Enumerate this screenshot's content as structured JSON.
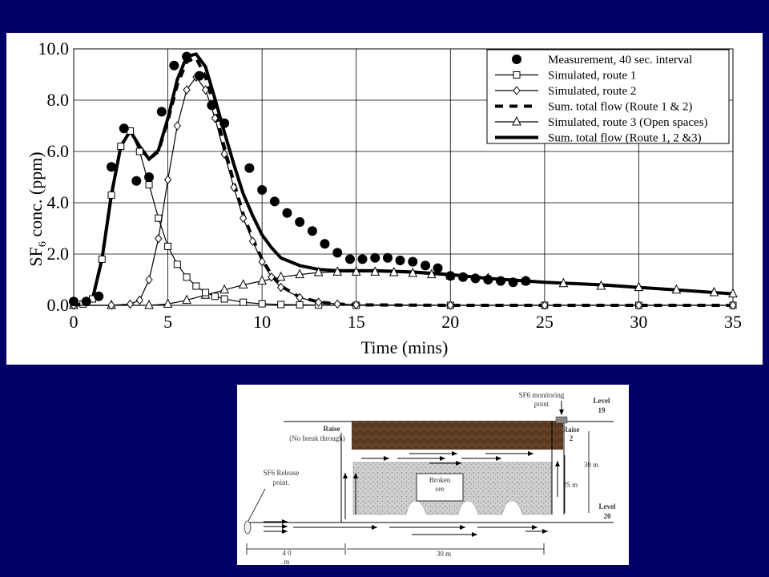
{
  "chart_data": {
    "type": "line",
    "xlabel": "Time (mins)",
    "ylabel_pre": "SF",
    "ylabel_sub": "6",
    "ylabel_post": " conc. (ppm)",
    "xlim": [
      0,
      35
    ],
    "ylim": [
      0,
      10
    ],
    "xticks": [
      0,
      5,
      10,
      15,
      20,
      25,
      30,
      35
    ],
    "yticks": [
      "0.0",
      "2.0",
      "4.0",
      "6.0",
      "8.0",
      "10.0"
    ],
    "grid": true,
    "legend_position": "top-right",
    "series": [
      {
        "name": "Measurement, 40 sec. interval",
        "style": "dots",
        "x": [
          0,
          0.67,
          1.33,
          2.0,
          2.67,
          3.33,
          4.0,
          4.67,
          5.33,
          6.0,
          6.67,
          7.33,
          8.0,
          9.33,
          10.0,
          10.67,
          11.33,
          12.0,
          12.67,
          13.33,
          14.0,
          14.67,
          15.33,
          16.0,
          16.67,
          17.33,
          18.0,
          18.67,
          19.33,
          20.0,
          20.67,
          21.33,
          22.0,
          22.67,
          23.33,
          24.0
        ],
        "y": [
          0.15,
          0.15,
          0.35,
          5.4,
          6.9,
          4.85,
          5.0,
          7.55,
          9.35,
          9.7,
          8.95,
          7.8,
          7.1,
          5.35,
          4.5,
          4.05,
          3.6,
          3.25,
          2.9,
          2.4,
          2.05,
          1.8,
          1.8,
          1.85,
          1.85,
          1.75,
          1.7,
          1.55,
          1.45,
          1.15,
          1.1,
          1.05,
          1.0,
          0.95,
          0.9,
          0.95
        ]
      },
      {
        "name": "Simulated, route 1",
        "style": "line-square",
        "x": [
          0,
          0.5,
          1.0,
          1.5,
          2.0,
          2.5,
          3.0,
          3.5,
          4.0,
          4.5,
          5.0,
          5.5,
          6.0,
          6.5,
          7.0,
          7.5,
          8.0,
          9.0,
          10.0,
          11.0,
          12.0,
          13.0,
          15.0,
          20.0,
          25.0,
          30.0,
          35.0
        ],
        "y": [
          0,
          0.05,
          0.25,
          1.8,
          4.3,
          6.2,
          6.8,
          6.0,
          4.7,
          3.4,
          2.3,
          1.6,
          1.1,
          0.75,
          0.5,
          0.35,
          0.25,
          0.12,
          0.06,
          0.03,
          0.02,
          0.01,
          0,
          0,
          0,
          0,
          0
        ]
      },
      {
        "name": "Simulated, route 2",
        "style": "line-diamond",
        "x": [
          0,
          2.0,
          3.0,
          3.5,
          4.0,
          4.5,
          5.0,
          5.5,
          6.0,
          6.5,
          7.0,
          7.5,
          8.0,
          8.5,
          9.0,
          9.5,
          10.0,
          10.5,
          11.0,
          12.0,
          13.0,
          14.0,
          15.0,
          20.0,
          25.0,
          30.0,
          35.0
        ],
        "y": [
          0,
          0,
          0.05,
          0.2,
          1.0,
          2.6,
          4.9,
          7.0,
          8.4,
          8.9,
          8.4,
          7.3,
          5.9,
          4.6,
          3.4,
          2.5,
          1.7,
          1.1,
          0.7,
          0.3,
          0.12,
          0.05,
          0.02,
          0,
          0,
          0,
          0
        ]
      },
      {
        "name": "Sum. total flow (Route 1 & 2)",
        "style": "dashed",
        "x": [
          0,
          0.5,
          1.0,
          1.5,
          2.0,
          2.5,
          3.0,
          3.5,
          4.0,
          4.5,
          5.0,
          5.5,
          6.0,
          6.5,
          7.0,
          7.5,
          8.0,
          8.5,
          9.0,
          9.5,
          10.0,
          10.5,
          11.0,
          12.0,
          13.0,
          14.0,
          15.0,
          20.0,
          25.0,
          30.0,
          35.0
        ],
        "y": [
          0,
          0.05,
          0.25,
          1.8,
          4.3,
          6.2,
          6.8,
          6.2,
          5.7,
          6.0,
          7.2,
          8.6,
          9.5,
          9.65,
          8.9,
          7.65,
          6.15,
          4.8,
          3.55,
          2.6,
          1.8,
          1.2,
          0.75,
          0.32,
          0.13,
          0.05,
          0.02,
          0,
          0,
          0,
          0
        ]
      },
      {
        "name": "Simulated, route 3 (Open spaces)",
        "style": "line-triangle",
        "x": [
          0,
          2.0,
          4.0,
          5.0,
          6.0,
          7.0,
          8.0,
          9.0,
          10.0,
          11.0,
          12.0,
          13.0,
          14.0,
          15.0,
          16.0,
          17.0,
          18.0,
          19.0,
          20.0,
          22.0,
          24.0,
          26.0,
          28.0,
          30.0,
          32.0,
          34.0,
          35.0
        ],
        "y": [
          0,
          0,
          0,
          0.05,
          0.2,
          0.4,
          0.6,
          0.8,
          0.95,
          1.1,
          1.2,
          1.28,
          1.3,
          1.3,
          1.3,
          1.28,
          1.25,
          1.2,
          1.15,
          1.05,
          0.95,
          0.85,
          0.75,
          0.7,
          0.6,
          0.5,
          0.45
        ]
      },
      {
        "name": "Sum. total flow (Route 1, 2 &3)",
        "style": "thick",
        "x": [
          0,
          0.5,
          1.0,
          1.5,
          2.0,
          2.5,
          3.0,
          3.5,
          4.0,
          4.5,
          5.0,
          5.5,
          6.0,
          6.5,
          7.0,
          7.5,
          8.0,
          8.5,
          9.0,
          9.5,
          10.0,
          10.5,
          11.0,
          12.0,
          13.0,
          14.0,
          15.0,
          16.0,
          18.0,
          20.0,
          22.0,
          25.0,
          28.0,
          30.0,
          32.0,
          35.0
        ],
        "y": [
          0,
          0.05,
          0.25,
          1.8,
          4.3,
          6.2,
          6.8,
          6.2,
          5.7,
          6.05,
          7.3,
          8.8,
          9.7,
          9.8,
          9.3,
          8.05,
          6.75,
          5.5,
          4.35,
          3.5,
          2.75,
          2.25,
          1.85,
          1.55,
          1.4,
          1.35,
          1.35,
          1.35,
          1.3,
          1.2,
          1.05,
          0.9,
          0.8,
          0.7,
          0.6,
          0.45
        ]
      }
    ]
  },
  "diagram": {
    "monitoring_point_label": [
      "SF6 monitoring",
      "point"
    ],
    "level19_label": [
      "Level",
      "19"
    ],
    "raise1_label": [
      "Raise",
      "(No break through)"
    ],
    "raise2_label": [
      "Raise",
      "2"
    ],
    "release_label": [
      "SF6 Release",
      "point."
    ],
    "broken_ore_label": [
      "Broken",
      "ore"
    ],
    "dim_30m_right": "30 m",
    "dim_25m": "25 m",
    "level20_label": [
      "Level",
      "20"
    ],
    "dim_40m": "4 0",
    "dim_40m_unit": "m",
    "dim_30m_bottom": "30 m",
    "colors": {
      "rock": "#5a3a22",
      "ore": "#c9c9c9"
    }
  }
}
